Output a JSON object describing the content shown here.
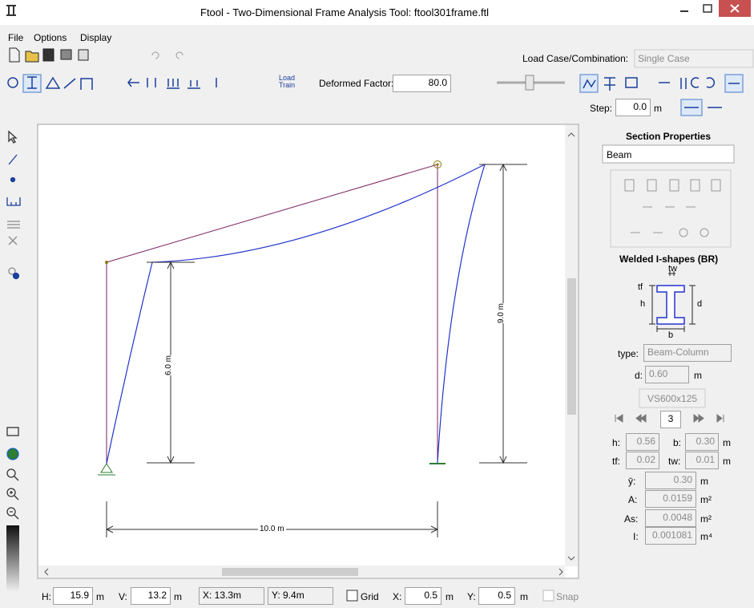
{
  "window": {
    "title": "Ftool - Two-Dimensional Frame Analysis Tool: ftool301frame.ftl"
  },
  "menu": [
    "File",
    "Options",
    "Display"
  ],
  "toolbar": {
    "load_case_label": "Load Case/Combination:",
    "load_case_value": "Single Case",
    "load_train": [
      "Load",
      "Train"
    ],
    "deformed_factor_label": "Deformed Factor:",
    "deformed_factor_value": "80.0",
    "step_label": "Step:",
    "step_value": "0.0",
    "step_unit": "m"
  },
  "canvas": {
    "dimensions": [
      "6.0 m",
      "9.0 m",
      "10.0 m"
    ]
  },
  "section_panel": {
    "title": "Section Properties",
    "element": "Beam",
    "family": "Welded I-shapes (BR)",
    "diagram_labels": [
      "tw",
      "tf",
      "h",
      "d",
      "b"
    ],
    "type_label": "type:",
    "type_value": "Beam-Column",
    "d_label": "d:",
    "d_value": "0.60",
    "d_unit": "m",
    "section_name": "VS600x125",
    "page": "3",
    "dims": [
      {
        "label": "h:",
        "value": "0.56"
      },
      {
        "label": "b:",
        "value": "0.30",
        "unit": "m"
      },
      {
        "label": "tf:",
        "value": "0.02"
      },
      {
        "label": "tw:",
        "value": "0.01",
        "unit": "m"
      }
    ],
    "props": [
      {
        "label": "ȳ:",
        "value": "0.30",
        "unit": "m"
      },
      {
        "label": "A:",
        "value": "0.0159",
        "unit": "m²"
      },
      {
        "label": "As:",
        "value": "0.0048",
        "unit": "m²"
      },
      {
        "label": "I:",
        "value": "0.001081",
        "unit": "m⁴"
      }
    ]
  },
  "status_bar": {
    "h_label": "H:",
    "h_value": "15.9",
    "h_unit": "m",
    "v_label": "V:",
    "v_value": "13.2",
    "v_unit": "m",
    "x_coord": "X: 13.3m",
    "y_coord": "Y: 9.4m",
    "grid_label": "Grid",
    "gx_label": "X:",
    "gx_value": "0.5",
    "gx_unit": "m",
    "gy_label": "Y:",
    "gy_value": "0.5",
    "gy_unit": "m",
    "snap_label": "Snap"
  }
}
